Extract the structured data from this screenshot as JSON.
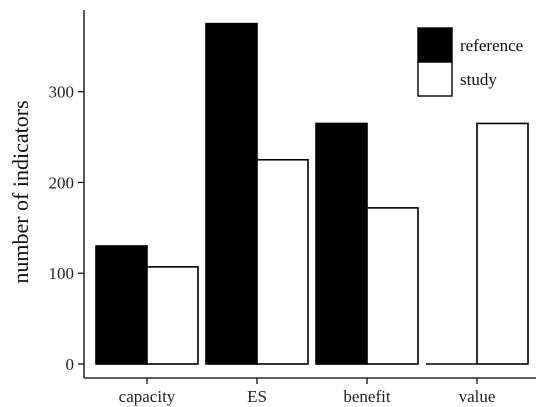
{
  "chart_data": {
    "type": "bar",
    "categories": [
      "capacity",
      "ES",
      "benefit",
      "value"
    ],
    "series": [
      {
        "name": "reference",
        "values": [
          130,
          375,
          265,
          0
        ],
        "color": "#000000"
      },
      {
        "name": "study",
        "values": [
          107,
          225,
          172,
          265
        ],
        "color": "#ffffff"
      }
    ],
    "title": "",
    "xlabel": "",
    "ylabel": "number of indicators",
    "ylim": [
      0,
      390
    ],
    "yticks": [
      0,
      100,
      200,
      300
    ],
    "grid": false,
    "legend_position": "top-right",
    "bar_stroke": "#000000"
  }
}
